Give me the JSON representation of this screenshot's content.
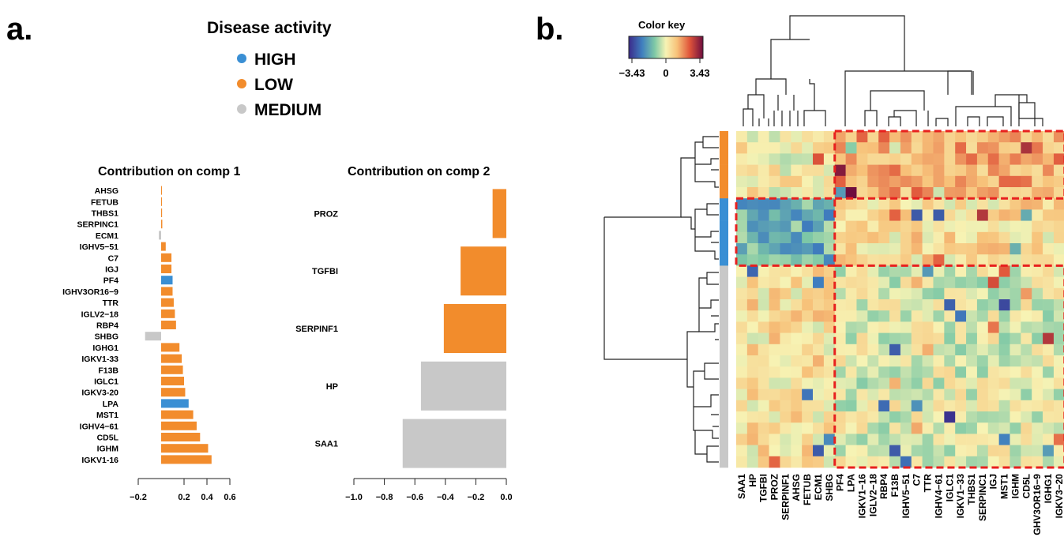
{
  "panel_a_label": "a.",
  "panel_b_label": "b.",
  "legend": {
    "title": "Disease activity",
    "items": [
      {
        "label": "HIGH",
        "color": "#3a8fd4"
      },
      {
        "label": "LOW",
        "color": "#f28c2c"
      },
      {
        "label": "MEDIUM",
        "color": "#c8c8c8"
      }
    ]
  },
  "chart_data": [
    {
      "type": "bar",
      "orientation": "horizontal",
      "title": "Contribution on comp 1",
      "categories": [
        "AHSG",
        "FETUB",
        "THBS1",
        "SERPINC1",
        "ECM1",
        "IGHV5−51",
        "C7",
        "IGJ",
        "PF4",
        "IGHV3OR16−9",
        "TTR",
        "IGLV2−18",
        "RBP4",
        "SHBG",
        "IGHG1",
        "IGKV1-33",
        "F13B",
        "IGLC1",
        "IGKV3-20",
        "LPA",
        "MST1",
        "IGHV4−61",
        "CD5L",
        "IGHM",
        "IGKV1-16"
      ],
      "values": [
        0.003,
        0.006,
        0.008,
        0.01,
        -0.02,
        0.04,
        0.09,
        0.09,
        0.1,
        0.1,
        0.11,
        0.12,
        0.13,
        -0.14,
        0.16,
        0.18,
        0.19,
        0.2,
        0.21,
        0.24,
        0.28,
        0.31,
        0.34,
        0.41,
        0.44
      ],
      "groups": [
        "LOW",
        "LOW",
        "LOW",
        "LOW",
        "MEDIUM",
        "LOW",
        "LOW",
        "LOW",
        "HIGH",
        "LOW",
        "LOW",
        "LOW",
        "LOW",
        "MEDIUM",
        "LOW",
        "LOW",
        "LOW",
        "LOW",
        "LOW",
        "HIGH",
        "LOW",
        "LOW",
        "LOW",
        "LOW",
        "LOW"
      ],
      "xticks": [
        -0.2,
        0.2,
        0.4,
        0.6
      ],
      "xtick_labels": [
        "−0.2",
        "0.2",
        "0.4",
        "0.6"
      ],
      "xlim": [
        -0.2,
        0.6
      ]
    },
    {
      "type": "bar",
      "orientation": "horizontal",
      "title": "Contribution on comp 2",
      "categories": [
        "PROZ",
        "TGFBI",
        "SERPINF1",
        "HP",
        "SAA1"
      ],
      "values": [
        -0.09,
        -0.3,
        -0.41,
        -0.56,
        -0.68
      ],
      "groups": [
        "LOW",
        "LOW",
        "LOW",
        "MEDIUM",
        "MEDIUM"
      ],
      "xticks": [
        -1.0,
        -0.8,
        -0.6,
        -0.4,
        -0.2,
        0.0
      ],
      "xtick_labels": [
        "−1.0",
        "−0.8",
        "−0.6",
        "−0.4",
        "−0.2",
        "0.0"
      ],
      "xlim": [
        -1.0,
        0.0
      ]
    },
    {
      "type": "heatmap",
      "color_key": {
        "title": "Color key",
        "ticks": [
          "−3.43",
          "0",
          "3.43"
        ],
        "range": [
          -3.43,
          3.43
        ]
      },
      "columns": [
        "SAA1",
        "HP",
        "TGFBI",
        "PROZ",
        "SERPINF1",
        "AHSG",
        "FETUB",
        "ECM1",
        "SHBG",
        "PF4",
        "LPA",
        "IGKV1−16",
        "IGLV2−18",
        "RBP4",
        "F13B",
        "IGHV5−51",
        "C7",
        "TTR",
        "IGHV4−61",
        "IGLC1",
        "IGKV1−33",
        "THBS1",
        "SERPINC1",
        "IGJ",
        "MST1",
        "IGHM",
        "CD5L",
        "GHV3OR16−9",
        "IGHG1",
        "IGKV3−20"
      ],
      "row_groups": [
        {
          "group": "LOW",
          "rows": 6
        },
        {
          "group": "HIGH",
          "rows": 6
        },
        {
          "group": "MEDIUM",
          "rows": 18
        }
      ]
    }
  ]
}
